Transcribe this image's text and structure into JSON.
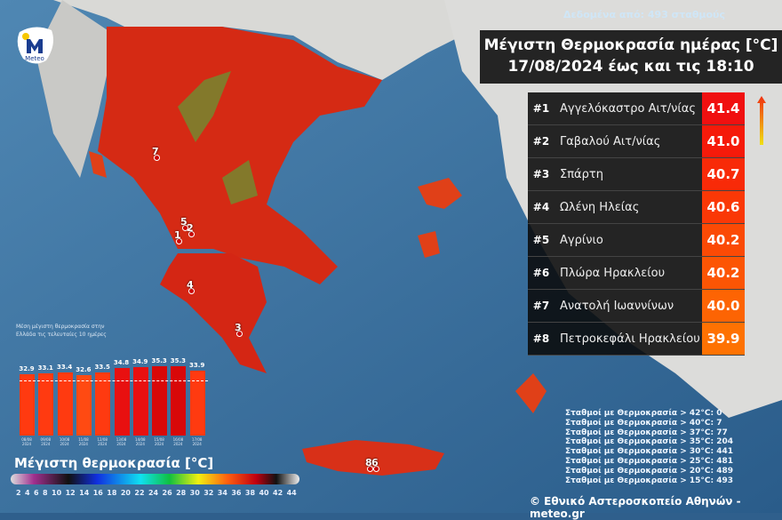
{
  "header": {
    "stations_note": "Δεδομένα από: 493 σταθμούς",
    "title_line1": "Μέγιστη Θερμοκρασία ημέρας [°C]",
    "title_line2": "17/08/2024 έως και τις 18:10"
  },
  "ranking": [
    {
      "rank": "#1",
      "name": "Αγγελόκαστρο Αιτ/νίας",
      "value": "41.4",
      "color": "#f01010"
    },
    {
      "rank": "#2",
      "name": "Γαβαλού Αιτ/νίας",
      "value": "41.0",
      "color": "#f51a0a"
    },
    {
      "rank": "#3",
      "name": "Σπάρτη",
      "value": "40.7",
      "color": "#f82a08"
    },
    {
      "rank": "#4",
      "name": "Ωλένη Ηλείας",
      "value": "40.6",
      "color": "#fa3806"
    },
    {
      "rank": "#5",
      "name": "Αγρίνιο",
      "value": "40.2",
      "color": "#fb4a05"
    },
    {
      "rank": "#6",
      "name": "Πλώρα Ηρακλείου",
      "value": "40.2",
      "color": "#fc5504"
    },
    {
      "rank": "#7",
      "name": "Ανατολή Ιωαννίνων",
      "value": "40.0",
      "color": "#fd6403"
    },
    {
      "rank": "#8",
      "name": "Πετροκεφάλι Ηρακλείου",
      "value": "39.9",
      "color": "#fe7202"
    }
  ],
  "counts": [
    "Σταθμοί με Θερμοκρασία > 42°C: 0",
    "Σταθμοί με Θερμοκρασία > 40°C: 7",
    "Σταθμοί με Θερμοκρασία > 37°C: 77",
    "Σταθμοί με Θερμοκρασία > 35°C: 204",
    "Σταθμοί με Θερμοκρασία > 30°C: 441",
    "Σταθμοί με Θερμοκρασία > 25°C: 481",
    "Σταθμοί με Θερμοκρασία > 20°C: 489",
    "Σταθμοί με Θερμοκρασία > 15°C: 493"
  ],
  "credit": "© Εθνικό Αστεροσκοπείο Αθηνών - meteo.gr",
  "logo": {
    "text": "Meteo"
  },
  "legend": {
    "title": "Μέγιστη θερμοκρασία [°C]",
    "ticks": [
      "2",
      "4",
      "6",
      "8",
      "10",
      "12",
      "14",
      "16",
      "18",
      "20",
      "22",
      "24",
      "26",
      "28",
      "30",
      "32",
      "34",
      "36",
      "38",
      "40",
      "42",
      "44"
    ]
  },
  "markers": [
    "1",
    "2",
    "3",
    "4",
    "5",
    "6",
    "7",
    "8"
  ],
  "chart_data": {
    "type": "bar",
    "title": "Μέση μέγιστη θερμοκρασία στην Ελλάδα τις τελευταίες 10 ημέρες",
    "categories": [
      "08/08 2024",
      "09/08 2024",
      "10/08 2024",
      "11/08 2024",
      "12/08 2024",
      "13/08 2024",
      "14/08 2024",
      "15/08 2024",
      "16/08 2024",
      "17/08 2024"
    ],
    "values": [
      32.9,
      33.1,
      33.4,
      32.6,
      33.5,
      34.8,
      34.9,
      35.3,
      35.3,
      33.9
    ],
    "reference_line": "dashed",
    "colors": [
      "#ff3a10",
      "#ff3a10",
      "#ff3a10",
      "#ff4a12",
      "#ff3a10",
      "#e81010",
      "#e81010",
      "#d80808",
      "#d80808",
      "#ff3a10"
    ]
  }
}
